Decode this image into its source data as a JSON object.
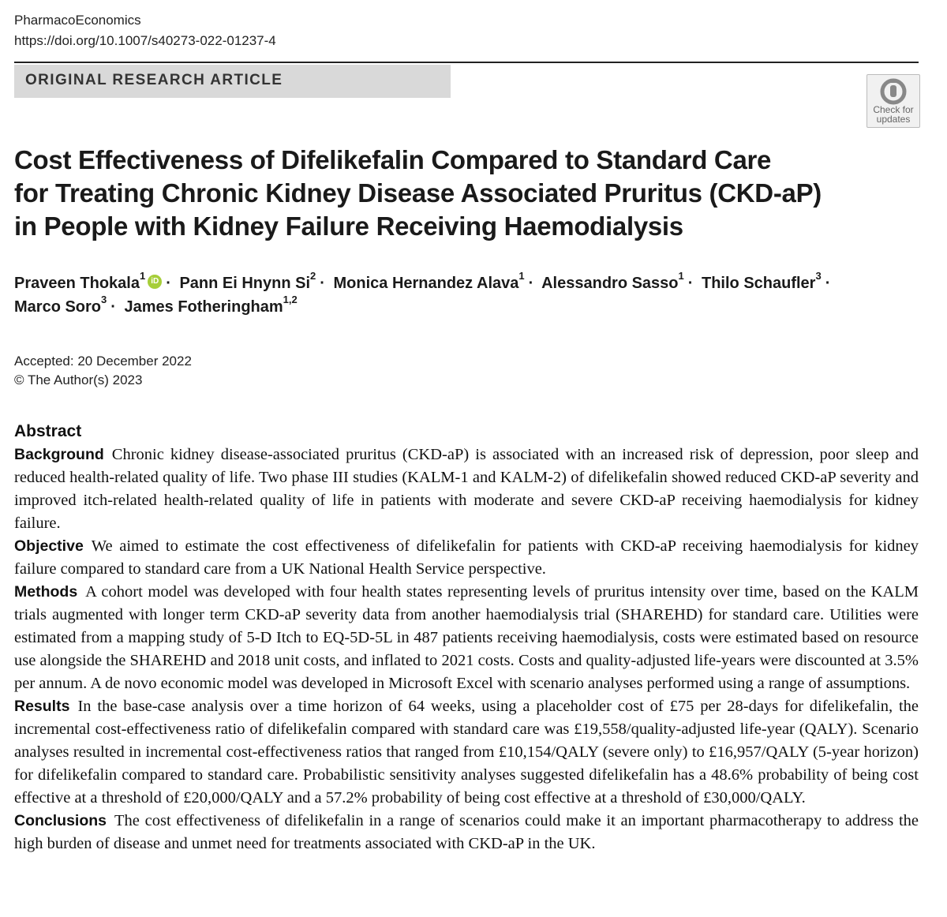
{
  "header": {
    "journal": "PharmacoEconomics",
    "doi": "https://doi.org/10.1007/s40273-022-01237-4",
    "article_type": "ORIGINAL RESEARCH ARTICLE",
    "check_updates_line1": "Check for",
    "check_updates_line2": "updates"
  },
  "title": "Cost Effectiveness of Difelikefalin Compared to Standard Care for Treating Chronic Kidney Disease Associated Pruritus (CKD-aP) in People with Kidney Failure Receiving Haemodialysis",
  "title_lines": [
    "Cost Effectiveness of Difelikefalin Compared to Standard Care",
    "for Treating Chronic Kidney Disease Associated Pruritus (CKD-aP)",
    "in People with Kidney Failure Receiving Haemodialysis"
  ],
  "authors": [
    {
      "name": "Praveen Thokala",
      "aff": "1",
      "orcid": true
    },
    {
      "name": "Pann Ei Hnynn Si",
      "aff": "2",
      "orcid": false
    },
    {
      "name": "Monica Hernandez Alava",
      "aff": "1",
      "orcid": false
    },
    {
      "name": "Alessandro Sasso",
      "aff": "1",
      "orcid": false
    },
    {
      "name": "Thilo Schaufler",
      "aff": "3",
      "orcid": false
    },
    {
      "name": "Marco Soro",
      "aff": "3",
      "orcid": false
    },
    {
      "name": "James Fotheringham",
      "aff": "1,2",
      "orcid": false
    }
  ],
  "orcid_glyph": "iD",
  "author_separator": "·",
  "dates": {
    "accepted": "Accepted: 20 December 2022",
    "copyright": "© The Author(s) 2023"
  },
  "abstract": {
    "heading": "Abstract",
    "sections": [
      {
        "label": "Background",
        "text": "Chronic kidney disease-associated pruritus (CKD-aP) is associated with an increased risk of depression, poor sleep and reduced health-related quality of life. Two phase III studies (KALM-1 and KALM-2) of difelikefalin showed reduced CKD-aP severity and improved itch-related health-related quality of life in patients with moderate and severe CKD-aP receiving haemodialysis for kidney failure."
      },
      {
        "label": "Objective",
        "text": "We aimed to estimate the cost effectiveness of difelikefalin for patients with CKD-aP receiving haemodialysis for kidney failure compared to standard care from a UK National Health Service perspective."
      },
      {
        "label": "Methods",
        "text": "A cohort model was developed with four health states representing levels of pruritus intensity over time, based on the KALM trials augmented with longer term CKD-aP severity data from another haemodialysis trial (SHAREHD) for stand­ard care. Utilities were estimated from a mapping study of 5-D Itch to EQ-5D-5L in 487 patients receiving haemodialysis, costs were estimated based on resource use alongside the SHAREHD and 2018 unit costs, and inflated to 2021 costs. Costs and quality-adjusted life-years were discounted at 3.5% per annum. A de novo economic model was developed in Microsoft Excel with scenario analyses performed using a range of assumptions."
      },
      {
        "label": "Results",
        "text": "In the base-case analysis over a time horizon of 64 weeks, using a placeholder cost of £75 per 28-days for difelike­falin, the incremental cost-effectiveness ratio of difelikefalin compared with standard care was £19,558/quality-adjusted life-year (QALY). Scenario analyses resulted in incremental cost-effectiveness ratios that ranged from £10,154/QALY (severe only) to £16,957/QALY (5-year horizon) for difelikefalin compared to standard care. Probabilistic sensitivity analyses sug­gested difelikefalin has a 48.6% probability of being cost effective at a threshold of £20,000/QALY and a 57.2% probability of being cost effective at a threshold of £30,000/QALY."
      },
      {
        "label": "Conclusions",
        "text": "The cost effectiveness of difelikefalin in a range of scenarios could make it an important pharmacotherapy to address the high burden of disease and unmet need for treatments associated with CKD-aP in the UK."
      }
    ]
  }
}
